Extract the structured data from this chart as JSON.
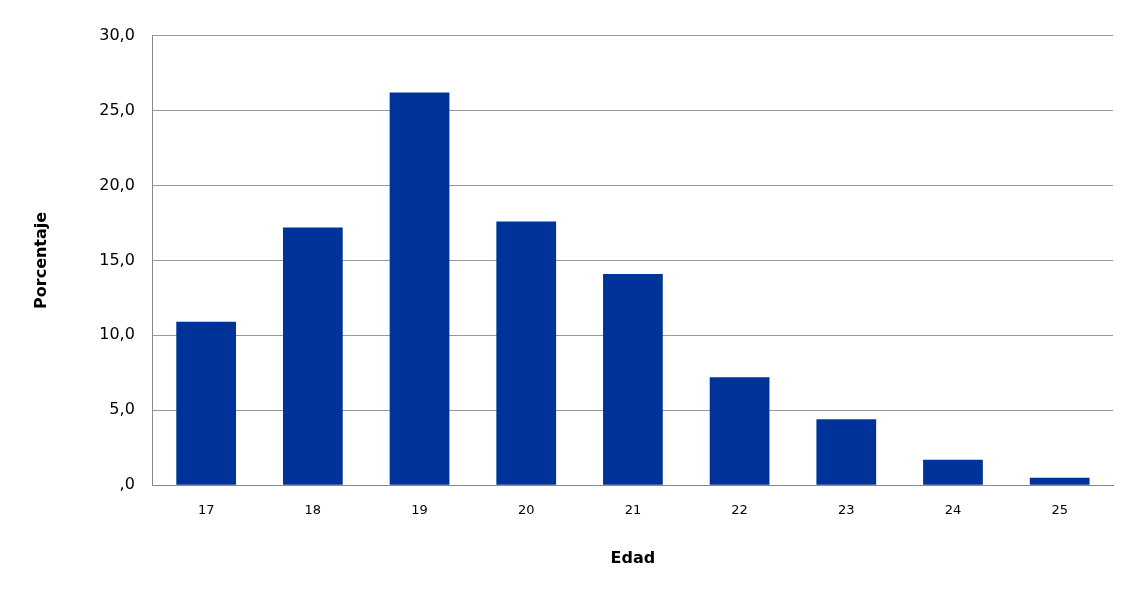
{
  "chart_data": {
    "type": "bar",
    "xlabel": "Edad",
    "ylabel": "Porcentaje",
    "categories": [
      "17",
      "18",
      "19",
      "20",
      "21",
      "22",
      "23",
      "24",
      "25"
    ],
    "values": [
      10.9,
      17.2,
      26.2,
      17.6,
      14.1,
      7.2,
      4.4,
      1.7,
      0.5
    ],
    "color": "#003399",
    "ylim": [
      0,
      30
    ],
    "yticks": [
      {
        "value": 0,
        "label": ",0"
      },
      {
        "value": 5,
        "label": "5,0"
      },
      {
        "value": 10,
        "label": "10,0"
      },
      {
        "value": 15,
        "label": "15,0"
      },
      {
        "value": 20,
        "label": "20,0"
      },
      {
        "value": 25,
        "label": "25,0"
      },
      {
        "value": 30,
        "label": "30,0"
      }
    ],
    "grid": "y",
    "legend": false
  }
}
